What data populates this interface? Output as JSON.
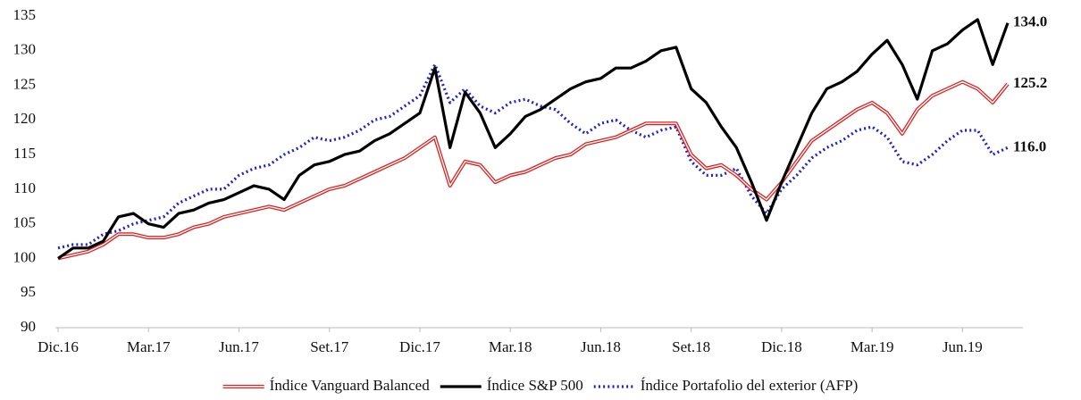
{
  "chart_data": {
    "type": "line",
    "categories": [
      "Dic.16",
      null,
      null,
      null,
      null,
      null,
      "Mar.17",
      null,
      null,
      null,
      null,
      null,
      "Jun.17",
      null,
      null,
      null,
      null,
      null,
      "Set.17",
      null,
      null,
      null,
      null,
      null,
      "Dic.17",
      null,
      null,
      null,
      null,
      null,
      "Mar.18",
      null,
      null,
      null,
      null,
      null,
      "Jun.18",
      null,
      null,
      null,
      null,
      null,
      "Set.18",
      null,
      null,
      null,
      null,
      null,
      "Dic.18",
      null,
      null,
      null,
      null,
      null,
      "Mar.19",
      null,
      null,
      null,
      null,
      null,
      "Jun.19",
      null,
      null,
      null
    ],
    "series": [
      {
        "name": "Índice Vanguard Balanced",
        "color": "#e02020",
        "style": "double",
        "values": [
          100,
          100.5,
          101,
          102,
          103.5,
          103.5,
          103,
          103,
          103.5,
          104.5,
          105,
          106,
          106.5,
          107,
          107.5,
          107,
          108,
          109,
          110,
          110.5,
          111.5,
          112.5,
          113.5,
          114.5,
          116,
          117.5,
          110.5,
          114,
          113.5,
          111,
          112,
          112.5,
          113.5,
          114.5,
          115,
          116.5,
          117,
          117.5,
          118.5,
          119.5,
          119.5,
          119.5,
          115,
          113,
          113.5,
          112,
          110,
          108.5,
          111,
          114,
          117,
          118.5,
          120,
          121.5,
          122.5,
          121,
          118,
          121.5,
          123.5,
          124.5,
          125.5,
          124.5,
          122.5,
          125.2
        ],
        "value_labels": [
          null,
          null,
          null,
          null,
          null,
          null,
          null,
          null,
          null,
          null,
          null,
          null,
          null,
          null,
          null,
          null,
          null,
          null,
          null,
          null,
          null,
          null,
          null,
          null,
          null,
          null,
          null,
          null,
          null,
          null,
          null,
          null,
          null,
          null,
          null,
          null,
          null,
          null,
          null,
          null,
          null,
          null,
          null,
          null,
          null,
          null,
          null,
          null,
          null,
          null,
          null,
          null,
          null,
          null,
          null,
          null,
          null,
          null,
          null,
          null,
          null,
          null,
          null,
          "125.2"
        ]
      },
      {
        "name": "Índice S&P 500",
        "color": "#000000",
        "style": "solid",
        "values": [
          100,
          101.5,
          101.5,
          102.5,
          106,
          106.5,
          105,
          104.5,
          106.5,
          107,
          108,
          108.5,
          109.5,
          110.5,
          110,
          108.5,
          112,
          113.5,
          114,
          115,
          115.5,
          117,
          118,
          119.5,
          121,
          127.5,
          116,
          124,
          121,
          116,
          118,
          120.5,
          121.5,
          123,
          124.5,
          125.5,
          126,
          127.5,
          127.5,
          128.5,
          130,
          130.5,
          124.5,
          122.5,
          119,
          116,
          111,
          105.5,
          111,
          116,
          121,
          124.5,
          125.5,
          127,
          129.5,
          131.5,
          128,
          123,
          130,
          131,
          133,
          134.5,
          128,
          134
        ],
        "value_labels": [
          null,
          null,
          null,
          null,
          null,
          null,
          null,
          null,
          null,
          null,
          null,
          null,
          null,
          null,
          null,
          null,
          null,
          null,
          null,
          null,
          null,
          null,
          null,
          null,
          null,
          null,
          null,
          null,
          null,
          null,
          null,
          null,
          null,
          null,
          null,
          null,
          null,
          null,
          null,
          null,
          null,
          null,
          null,
          null,
          null,
          null,
          null,
          null,
          null,
          null,
          null,
          null,
          null,
          null,
          null,
          null,
          null,
          null,
          null,
          null,
          null,
          null,
          null,
          "134.0"
        ]
      },
      {
        "name": "Índice Portafolio del exterior (AFP)",
        "color": "#1f1fd6",
        "style": "dotted",
        "values": [
          101.5,
          102,
          102,
          103.5,
          104,
          105,
          105.5,
          106,
          108,
          109,
          110,
          110,
          112,
          113,
          113.5,
          115,
          116,
          117.5,
          117,
          117.5,
          118.5,
          120,
          120.5,
          122,
          123.5,
          128,
          122.5,
          124.5,
          122,
          121,
          122.5,
          123,
          122,
          121.5,
          119.5,
          118,
          119.5,
          120,
          118.5,
          117.5,
          118.5,
          119,
          114,
          112,
          112,
          113,
          109,
          106.5,
          110,
          112,
          114.5,
          116,
          117,
          118.5,
          119,
          117.5,
          114,
          113.5,
          115,
          117,
          118.5,
          118.5,
          115,
          116
        ],
        "value_labels": [
          null,
          null,
          null,
          null,
          null,
          null,
          null,
          null,
          null,
          null,
          null,
          null,
          null,
          null,
          null,
          null,
          null,
          null,
          null,
          null,
          null,
          null,
          null,
          null,
          null,
          null,
          null,
          null,
          null,
          null,
          null,
          null,
          null,
          null,
          null,
          null,
          null,
          null,
          null,
          null,
          null,
          null,
          null,
          null,
          null,
          null,
          null,
          null,
          null,
          null,
          null,
          null,
          null,
          null,
          null,
          null,
          null,
          null,
          null,
          null,
          null,
          null,
          null,
          "116.0"
        ]
      }
    ],
    "ylim": [
      90,
      135
    ],
    "yticks": [
      90,
      95,
      100,
      105,
      110,
      115,
      120,
      125,
      130,
      135
    ],
    "grid": false,
    "legend": "bottom"
  }
}
